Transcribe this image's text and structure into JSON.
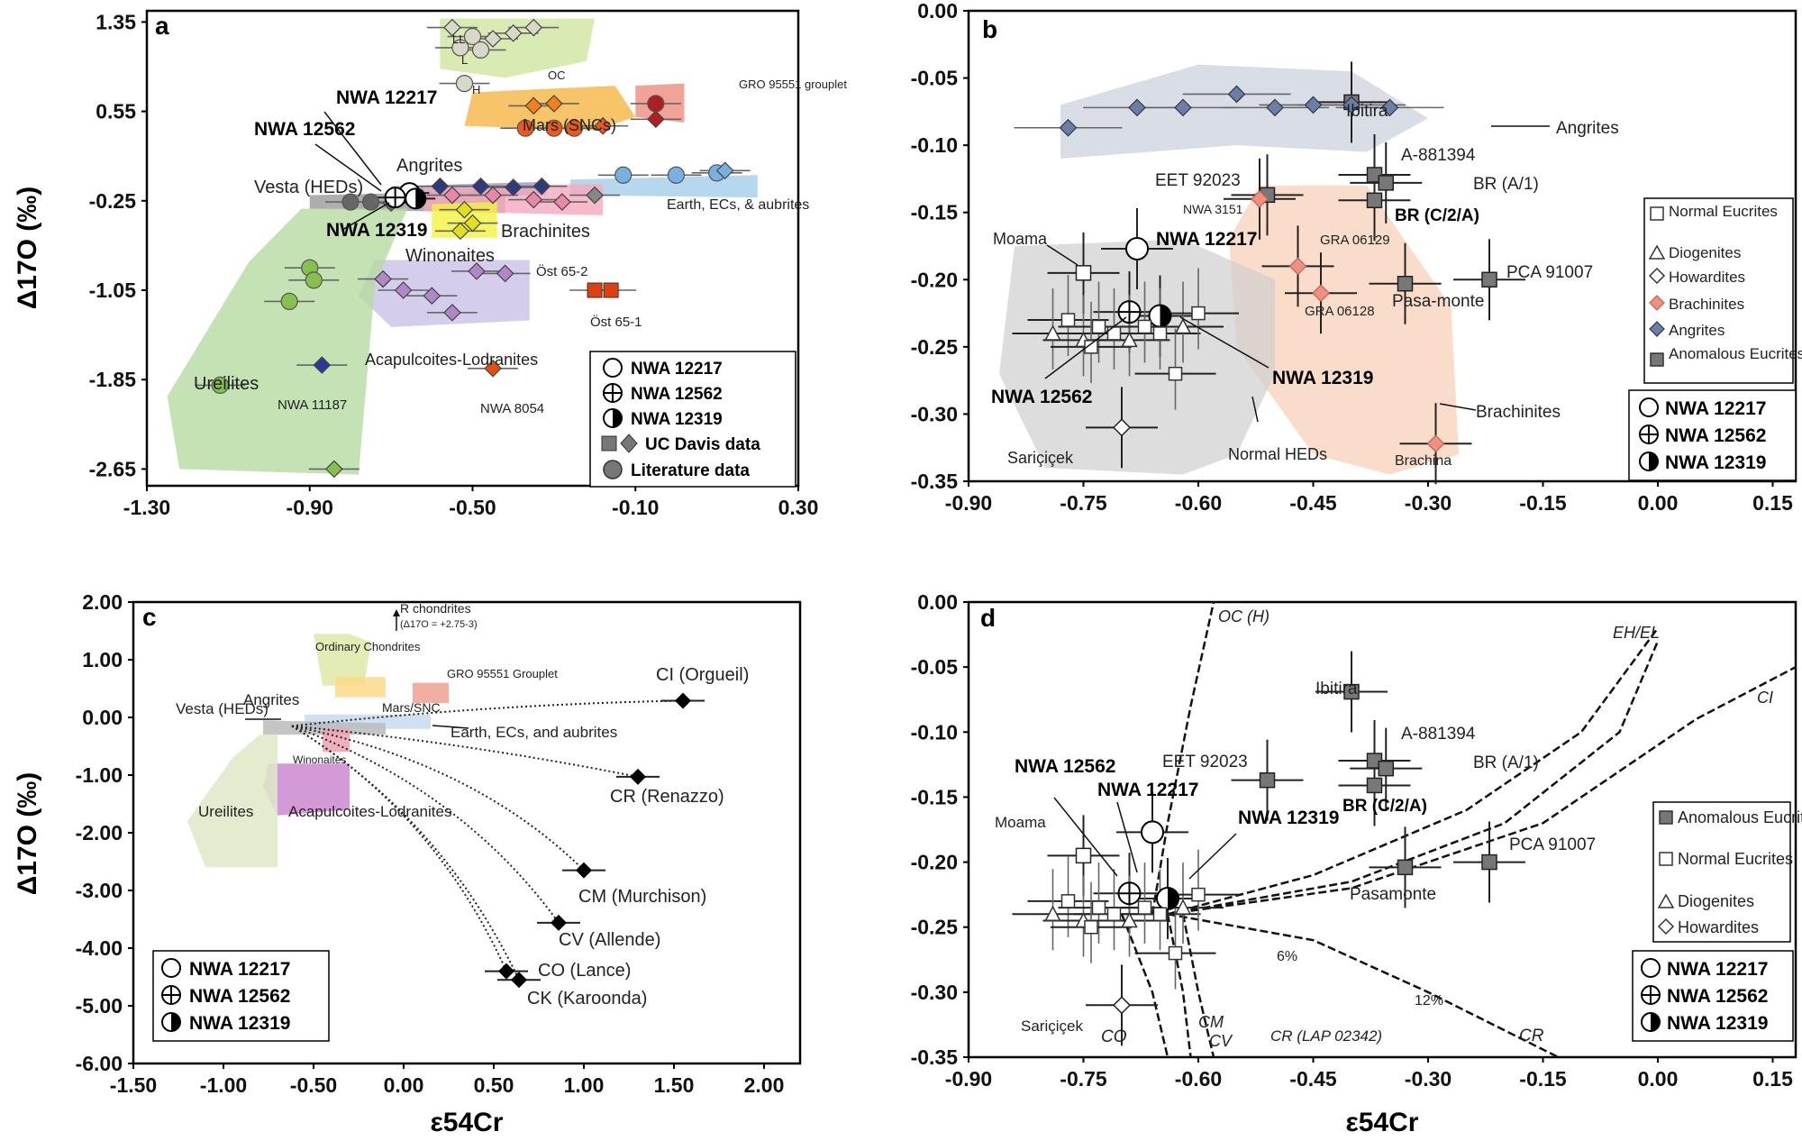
{
  "chart_data": [
    {
      "panel": "a",
      "type": "scatter",
      "xlim": [
        -1.3,
        0.3
      ],
      "ylim": [
        -2.8,
        1.45
      ],
      "xticks": [
        "-1.30",
        "-0.90",
        "-0.50",
        "-0.10",
        "0.30"
      ],
      "xtick_values": [
        -1.3,
        -0.9,
        -0.5,
        -0.1,
        0.3
      ],
      "yticks": [
        "1.35",
        "0.55",
        "-0.25",
        "-1.05",
        "-1.85",
        "-2.65"
      ],
      "ytick_values": [
        1.35,
        0.55,
        -0.25,
        -1.05,
        -1.85,
        -2.65
      ],
      "ylabel": "Δ17O (‰)",
      "regions": [
        {
          "name": "OC",
          "label": "OC",
          "color": "#cfe6a0",
          "points": [
            [
              -0.58,
              1.38
            ],
            [
              -0.2,
              1.38
            ],
            [
              -0.22,
              1.0
            ],
            [
              -0.42,
              0.85
            ],
            [
              -0.58,
              0.93
            ]
          ]
        },
        {
          "name": "Mars",
          "label": "Mars (SNCs)",
          "color": "#f6b544",
          "points": [
            [
              -0.5,
              0.72
            ],
            [
              -0.15,
              0.78
            ],
            [
              -0.1,
              0.5
            ],
            [
              -0.2,
              0.38
            ],
            [
              -0.52,
              0.42
            ]
          ]
        },
        {
          "name": "GRO",
          "label": "GRO 95551 grouplet",
          "color": "#ef8c7e",
          "points": [
            [
              -0.1,
              0.78
            ],
            [
              0.02,
              0.8
            ],
            [
              0.02,
              0.45
            ],
            [
              -0.1,
              0.5
            ]
          ]
        },
        {
          "name": "Earth",
          "label": "Earth, ECs, & aubrites",
          "color": "#a5cdea",
          "points": [
            [
              -0.26,
              -0.06
            ],
            [
              0.2,
              -0.02
            ],
            [
              0.2,
              -0.22
            ],
            [
              -0.26,
              -0.2
            ]
          ]
        },
        {
          "name": "Angrites",
          "label": "Angrites",
          "color": "#8f96c7",
          "points": [
            [
              -0.7,
              -0.12
            ],
            [
              -0.32,
              -0.08
            ],
            [
              -0.32,
              -0.2
            ],
            [
              -0.7,
              -0.2
            ]
          ]
        },
        {
          "name": "Vesta",
          "label": "Vesta (HEDs)",
          "color": "#9a9a9a",
          "points": [
            [
              -0.9,
              -0.2
            ],
            [
              -0.42,
              -0.16
            ],
            [
              -0.42,
              -0.36
            ],
            [
              -0.9,
              -0.32
            ]
          ]
        },
        {
          "name": "Brachinites",
          "label": "Brachinites",
          "color": "#f5a9bd",
          "points": [
            [
              -0.62,
              -0.12
            ],
            [
              -0.18,
              -0.1
            ],
            [
              -0.18,
              -0.38
            ],
            [
              -0.62,
              -0.34
            ]
          ]
        },
        {
          "name": "Winonaites",
          "label": "Winonaites",
          "color": "#f4f23e",
          "points": [
            [
              -0.6,
              -0.28
            ],
            [
              -0.44,
              -0.26
            ],
            [
              -0.44,
              -0.58
            ],
            [
              -0.6,
              -0.58
            ]
          ]
        },
        {
          "name": "Acapulcoites",
          "label": "Acapulcoites-Lodranites",
          "color": "#c9c0e6",
          "points": [
            [
              -0.74,
              -0.78
            ],
            [
              -0.36,
              -0.78
            ],
            [
              -0.36,
              -1.32
            ],
            [
              -0.7,
              -1.38
            ],
            [
              -0.78,
              -1.1
            ]
          ]
        },
        {
          "name": "Ureilites",
          "label": "Ureilites",
          "color": "#b5dba0",
          "points": [
            [
              -0.92,
              -0.32
            ],
            [
              -0.66,
              -0.32
            ],
            [
              -0.74,
              -1.0
            ],
            [
              -0.78,
              -2.7
            ],
            [
              -1.22,
              -2.65
            ],
            [
              -1.25,
              -2.0
            ],
            [
              -1.05,
              -0.8
            ]
          ]
        }
      ],
      "points": [
        {
          "name": "NWA 12217",
          "x": -0.655,
          "y": -0.18,
          "marker": "open"
        },
        {
          "name": "NWA 12562",
          "x": -0.69,
          "y": -0.22,
          "marker": "cross"
        },
        {
          "name": "NWA 12319",
          "x": -0.64,
          "y": -0.23,
          "marker": "half"
        }
      ],
      "annotations": {
        "panel_letter": "a",
        "nwa12217": "NWA 12217",
        "nwa12562": "NWA 12562",
        "nwa12319": "NWA 12319",
        "angrites": "Angrites",
        "vesta": "Vesta (HEDs)",
        "brachinites": "Brachinites",
        "winonaites": "Winonaites",
        "mars": "Mars (SNCs)",
        "gro": "GRO 95551 grouplet",
        "earth": "Earth, ECs, & aubrites",
        "ureilites": "Ureilites",
        "acap": "Acapulcoites-Lodranites",
        "nwa11187": "NWA 11187",
        "nwa8054": "NWA 8054",
        "ost652": "Öst 65-2",
        "ost651": "Öst 65-1",
        "ll": "LL",
        "l": "L",
        "h": "H",
        "oc": "OC"
      },
      "legend": [
        "NWA 12217",
        "NWA 12562",
        "NWA 12319",
        "UC Davis data",
        "Literature data"
      ]
    },
    {
      "panel": "b",
      "type": "scatter",
      "xlim": [
        -0.9,
        0.18
      ],
      "ylim": [
        -0.35,
        0.0
      ],
      "xticks": [
        "-0.90",
        "-0.75",
        "-0.60",
        "-0.45",
        "-0.30",
        "-0.15",
        "0.00",
        "0.15"
      ],
      "xtick_values": [
        -0.9,
        -0.75,
        -0.6,
        -0.45,
        -0.3,
        -0.15,
        0.0,
        0.15
      ],
      "yticks": [
        "0.00",
        "-0.05",
        "-0.10",
        "-0.15",
        "-0.20",
        "-0.25",
        "-0.30",
        "-0.35"
      ],
      "ytick_values": [
        0,
        -0.05,
        -0.1,
        -0.15,
        -0.2,
        -0.25,
        -0.3,
        -0.35
      ],
      "points": [
        {
          "name": "NWA 12217",
          "x": -0.68,
          "y": -0.177,
          "marker": "open"
        },
        {
          "name": "NWA 12562",
          "x": -0.69,
          "y": -0.224,
          "marker": "cross"
        },
        {
          "name": "NWA 12319",
          "x": -0.65,
          "y": -0.227,
          "marker": "half"
        },
        {
          "name": "Ibitira",
          "x": -0.4,
          "y": -0.068,
          "marker": "square"
        },
        {
          "name": "A-881394",
          "x": -0.37,
          "y": -0.122,
          "marker": "square"
        },
        {
          "name": "BR (A/1)",
          "x": -0.355,
          "y": -0.128,
          "marker": "square"
        },
        {
          "name": "BR (C/2/A)",
          "x": -0.37,
          "y": -0.141,
          "marker": "square"
        },
        {
          "name": "EET 92023",
          "x": -0.51,
          "y": -0.137,
          "marker": "square"
        },
        {
          "name": "Pasamonte",
          "x": -0.33,
          "y": -0.203,
          "marker": "square"
        },
        {
          "name": "PCA 91007",
          "x": -0.22,
          "y": -0.2,
          "marker": "square"
        },
        {
          "name": "Moama",
          "x": -0.75,
          "y": -0.195,
          "marker": "opensquare"
        },
        {
          "name": "Sariçiçek",
          "x": -0.7,
          "y": -0.31,
          "marker": "diamond"
        },
        {
          "name": "NWA 3151",
          "x": -0.52,
          "y": -0.14,
          "marker": "pinkdiamond"
        },
        {
          "name": "GRA 06129",
          "x": -0.47,
          "y": -0.19,
          "marker": "pinkdiamond"
        },
        {
          "name": "GRA 06128",
          "x": -0.44,
          "y": -0.21,
          "marker": "pinkdiamond"
        },
        {
          "name": "Brachina",
          "x": -0.29,
          "y": -0.322,
          "marker": "pinkdiamond"
        }
      ],
      "annotations": {
        "panel_letter": "b",
        "ibitira": "Ibitira",
        "angrites": "Angrites",
        "a881394": "A-881394",
        "br_a1": "BR (A/1)",
        "br_c2a": "BR (C/2/A)",
        "eet": "EET 92023",
        "nwa3151": "NWA 3151",
        "moama": "Moama",
        "nwa12217": "NWA 12217",
        "gra129": "GRA 06129",
        "gra128": "GRA 06128",
        "pasamonte": "Pasa-monte",
        "pca": "PCA 91007",
        "nwa12562": "NWA 12562",
        "nwa12319": "NWA 12319",
        "brachinites": "Brachinites",
        "saricicek": "Sariçiçek",
        "normalheds": "Normal HEDs",
        "brachina": "Brachina"
      },
      "legend": [
        "Normal Eucrites",
        "Diogenites",
        "Howardites",
        "Brachinites",
        "Angrites",
        "Anomalous Eucrites"
      ],
      "legend2": [
        "NWA 12217",
        "NWA 12562",
        "NWA 12319"
      ]
    },
    {
      "panel": "c",
      "type": "scatter",
      "xlim": [
        -1.5,
        2.2
      ],
      "ylim": [
        -6.0,
        2.0
      ],
      "xticks": [
        "-1.50",
        "-1.00",
        "-0.50",
        "0.00",
        "0.50",
        "1.00",
        "1.50",
        "2.00"
      ],
      "xtick_values": [
        -1.5,
        -1.0,
        -0.5,
        0.0,
        0.5,
        1.0,
        1.5,
        2.0
      ],
      "yticks": [
        "2.00",
        "1.00",
        "0.00",
        "-1.00",
        "-2.00",
        "-3.00",
        "-4.00",
        "-5.00",
        "-6.00"
      ],
      "ytick_values": [
        2,
        1,
        0,
        -1,
        -2,
        -3,
        -4,
        -5,
        -6
      ],
      "xlabel": "ε54Cr",
      "ylabel": "Δ17O (‰)",
      "points": [
        {
          "name": "CI (Orgueil)",
          "x": 1.55,
          "y": 0.29
        },
        {
          "name": "CR (Renazzo)",
          "x": 1.3,
          "y": -1.03
        },
        {
          "name": "CM (Murchison)",
          "x": 1.0,
          "y": -2.65
        },
        {
          "name": "CV (Allende)",
          "x": 0.86,
          "y": -3.56
        },
        {
          "name": "CO (Lance)",
          "x": 0.57,
          "y": -4.4
        },
        {
          "name": "CK (Karoonda)",
          "x": 0.64,
          "y": -4.55
        }
      ],
      "annotations": {
        "panel_letter": "c",
        "rchondrites": "R chondrites",
        "rchondrites2": "(Δ17O = +2.75-3)",
        "ordinary": "Ordinary Chondrites",
        "gro": "GRO 95551 Grouplet",
        "mars": "Mars/SNC",
        "angrites": "Angrites",
        "vesta": "Vesta (HEDs)",
        "earth": "Earth, ECs, and aubrites",
        "winonaites": "Winonaites",
        "ureilites": "Ureilites",
        "acap": "Acapulcoites-Lodranites"
      },
      "legend": [
        "NWA 12217",
        "NWA 12562",
        "NWA 12319"
      ]
    },
    {
      "panel": "d",
      "type": "scatter",
      "xlim": [
        -0.9,
        0.18
      ],
      "ylim": [
        -0.35,
        0.0
      ],
      "xticks": [
        "-0.90",
        "-0.75",
        "-0.60",
        "-0.45",
        "-0.30",
        "-0.15",
        "0.00",
        "0.15"
      ],
      "xtick_values": [
        -0.9,
        -0.75,
        -0.6,
        -0.45,
        -0.3,
        -0.15,
        0.0,
        0.15
      ],
      "yticks": [
        "0.00",
        "-0.05",
        "-0.10",
        "-0.15",
        "-0.20",
        "-0.25",
        "-0.30",
        "-0.35"
      ],
      "ytick_values": [
        0,
        -0.05,
        -0.1,
        -0.15,
        -0.2,
        -0.25,
        -0.3,
        -0.35
      ],
      "xlabel": "ε54Cr",
      "points": [
        {
          "name": "NWA 12217",
          "x": -0.66,
          "y": -0.177,
          "marker": "open"
        },
        {
          "name": "NWA 12562",
          "x": -0.69,
          "y": -0.224,
          "marker": "cross"
        },
        {
          "name": "NWA 12319",
          "x": -0.64,
          "y": -0.228,
          "marker": "half"
        },
        {
          "name": "Ibitira",
          "x": -0.4,
          "y": -0.069,
          "marker": "square"
        },
        {
          "name": "A-881394",
          "x": -0.37,
          "y": -0.122,
          "marker": "square"
        },
        {
          "name": "BR (A/1)",
          "x": -0.355,
          "y": -0.128,
          "marker": "square"
        },
        {
          "name": "BR (C/2/A)",
          "x": -0.37,
          "y": -0.141,
          "marker": "square"
        },
        {
          "name": "EET 92023",
          "x": -0.51,
          "y": -0.137,
          "marker": "square"
        },
        {
          "name": "Pasamonte",
          "x": -0.33,
          "y": -0.204,
          "marker": "square"
        },
        {
          "name": "PCA 91007",
          "x": -0.22,
          "y": -0.2,
          "marker": "square"
        },
        {
          "name": "Moama",
          "x": -0.75,
          "y": -0.195,
          "marker": "opensquare"
        },
        {
          "name": "Sariçiçek",
          "x": -0.7,
          "y": -0.31,
          "marker": "diamond"
        }
      ],
      "annotations": {
        "panel_letter": "d",
        "oc": "OC (H)",
        "eh": "EH/EL",
        "ci": "CI",
        "ibitira": "Ibitira",
        "a881394": "A-881394",
        "br_a1": "BR (A/1)",
        "br_c2a": "BR (C/2/A)",
        "eet": "EET 92023",
        "nwa12562": "NWA 12562",
        "nwa12217": "NWA 12217",
        "nwa12319": "NWA 12319",
        "moama": "Moama",
        "pca": "PCA 91007",
        "pasamonte": "Pasamonte",
        "six": "6%",
        "twelve": "12%",
        "saricicek": "Sariçiçek",
        "co": "CO",
        "cm": "CM",
        "cv": "CV",
        "cr": "CR (LAP 02342)",
        "cr2": "CR"
      },
      "legend": [
        "Anomalous Eucrites",
        "Normal Eucrites",
        "Diogenites",
        "Howardites"
      ],
      "legend2": [
        "NWA 12217",
        "NWA 12562",
        "NWA 12319"
      ]
    }
  ]
}
